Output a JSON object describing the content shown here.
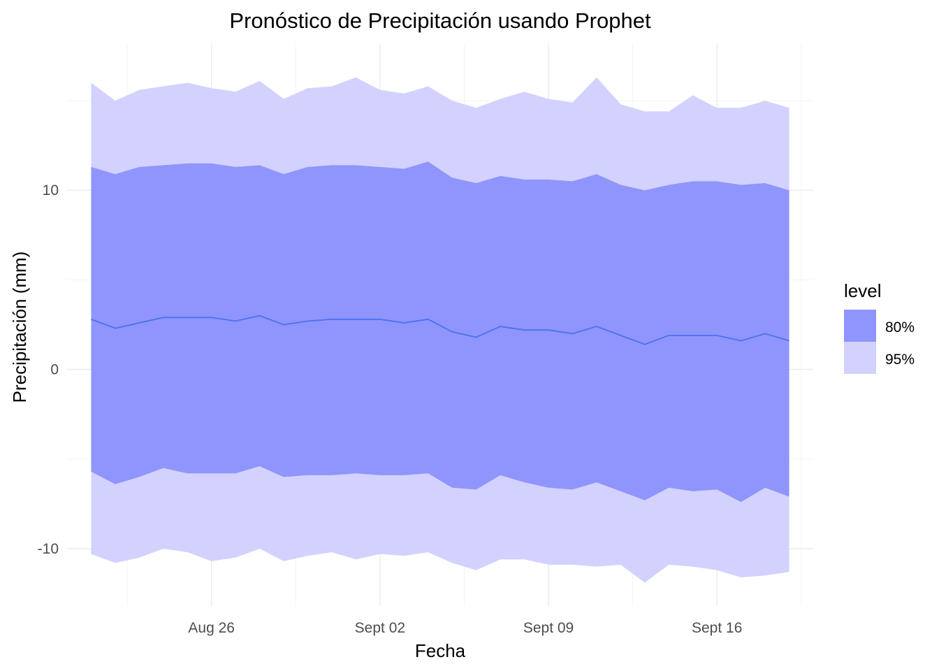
{
  "chart_data": {
    "type": "area",
    "title": "Pronóstico de Precipitación usando Prophet",
    "xlabel": "Fecha",
    "ylabel": "Precipitación (mm)",
    "x_ticks": [
      {
        "date": "2024-08-26",
        "label": "Aug 26"
      },
      {
        "date": "2024-09-02",
        "label": "Sept 02"
      },
      {
        "date": "2024-09-09",
        "label": "Sept 09"
      },
      {
        "date": "2024-09-16",
        "label": "Sept 16"
      }
    ],
    "y_ticks": [
      -10,
      0,
      10
    ],
    "xlim": [
      "2024-08-20",
      "2024-09-20"
    ],
    "ylim": [
      -13.2,
      18.2
    ],
    "grid": true,
    "legend": {
      "title": "level",
      "position": "right",
      "entries": [
        {
          "label": "80%",
          "color": "#8f95fc"
        },
        {
          "label": "95%",
          "color": "#d3d2fe"
        }
      ]
    },
    "colors": {
      "band80": "#8f95fc",
      "band95": "#d3d2fe",
      "forecast_line": "#4a72f0"
    },
    "x": [
      "2024-08-21",
      "2024-08-22",
      "2024-08-23",
      "2024-08-24",
      "2024-08-25",
      "2024-08-26",
      "2024-08-27",
      "2024-08-28",
      "2024-08-29",
      "2024-08-30",
      "2024-08-31",
      "2024-09-01",
      "2024-09-02",
      "2024-09-03",
      "2024-09-04",
      "2024-09-05",
      "2024-09-06",
      "2024-09-07",
      "2024-09-08",
      "2024-09-09",
      "2024-09-10",
      "2024-09-11",
      "2024-09-12",
      "2024-09-13",
      "2024-09-14",
      "2024-09-15",
      "2024-09-16",
      "2024-09-17",
      "2024-09-18",
      "2024-09-19"
    ],
    "series": [
      {
        "name": "yhat",
        "values": [
          2.8,
          2.3,
          2.6,
          2.9,
          2.9,
          2.9,
          2.7,
          3.0,
          2.5,
          2.7,
          2.8,
          2.8,
          2.8,
          2.6,
          2.8,
          2.1,
          1.8,
          2.4,
          2.2,
          2.2,
          2.0,
          2.4,
          1.9,
          1.4,
          1.9,
          1.9,
          1.9,
          1.6,
          2.0,
          1.6
        ]
      },
      {
        "name": "80% lower",
        "values": [
          -5.7,
          -6.4,
          -6.0,
          -5.5,
          -5.8,
          -5.8,
          -5.8,
          -5.4,
          -6.0,
          -5.9,
          -5.9,
          -5.8,
          -5.9,
          -5.9,
          -5.8,
          -6.6,
          -6.7,
          -5.9,
          -6.3,
          -6.6,
          -6.7,
          -6.3,
          -6.8,
          -7.3,
          -6.6,
          -6.8,
          -6.7,
          -7.4,
          -6.6,
          -7.1
        ]
      },
      {
        "name": "80% upper",
        "values": [
          11.3,
          10.9,
          11.3,
          11.4,
          11.5,
          11.5,
          11.3,
          11.4,
          10.9,
          11.3,
          11.4,
          11.4,
          11.3,
          11.2,
          11.6,
          10.7,
          10.4,
          10.8,
          10.6,
          10.6,
          10.5,
          10.9,
          10.3,
          10.0,
          10.3,
          10.5,
          10.5,
          10.3,
          10.4,
          10.0
        ]
      },
      {
        "name": "95% lower",
        "values": [
          -10.3,
          -10.8,
          -10.5,
          -10.0,
          -10.2,
          -10.7,
          -10.5,
          -10.0,
          -10.7,
          -10.4,
          -10.2,
          -10.6,
          -10.3,
          -10.4,
          -10.2,
          -10.8,
          -11.2,
          -10.6,
          -10.6,
          -10.9,
          -10.9,
          -11.0,
          -10.9,
          -11.9,
          -10.9,
          -11.0,
          -11.2,
          -11.6,
          -11.5,
          -11.3
        ]
      },
      {
        "name": "95% upper",
        "values": [
          16.0,
          15.0,
          15.6,
          15.8,
          16.0,
          15.7,
          15.5,
          16.1,
          15.1,
          15.7,
          15.8,
          16.3,
          15.6,
          15.4,
          15.8,
          15.0,
          14.6,
          15.1,
          15.5,
          15.1,
          14.9,
          16.3,
          14.8,
          14.4,
          14.4,
          15.3,
          14.6,
          14.6,
          15.0,
          14.6
        ]
      }
    ]
  }
}
